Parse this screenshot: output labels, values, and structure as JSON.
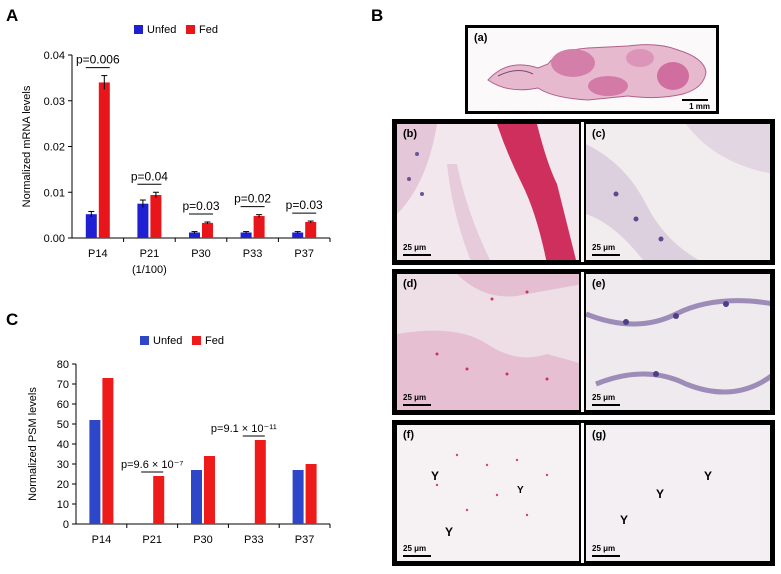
{
  "panel_labels": {
    "A": "A",
    "B": "B",
    "C": "C"
  },
  "chart_data": [
    {
      "type": "bar",
      "panel": "A",
      "categories": [
        "P14",
        "P21",
        "P30",
        "P33",
        "P37"
      ],
      "category_sublabels": [
        "",
        "(1/100)",
        "",
        "",
        ""
      ],
      "series": [
        {
          "name": "Unfed",
          "color": "#1f1fd4",
          "values": [
            0.0052,
            0.0075,
            0.0012,
            0.0012,
            0.0012
          ],
          "errors": [
            0.0006,
            0.0008,
            0.0002,
            0.0002,
            0.0002
          ]
        },
        {
          "name": "Fed",
          "color": "#e8161b",
          "values": [
            0.034,
            0.0094,
            0.0033,
            0.0048,
            0.0035
          ],
          "errors": [
            0.0015,
            0.0006,
            0.0002,
            0.0003,
            0.0002
          ]
        }
      ],
      "annotations": [
        "p=0.006",
        "p=0.04",
        "p=0.03",
        "p=0.02",
        "p=0.03"
      ],
      "ylabel": "Normalized mRNA levels",
      "ylim": [
        0,
        0.04
      ],
      "yticks": [
        "0.00",
        "0.01",
        "0.02",
        "0.03",
        "0.04"
      ],
      "legend": "top"
    },
    {
      "type": "bar",
      "panel": "C",
      "categories": [
        "P14",
        "P21",
        "P30",
        "P33",
        "P37"
      ],
      "series": [
        {
          "name": "Unfed",
          "color": "#2e47c8",
          "values": [
            52,
            0,
            27,
            0,
            27
          ]
        },
        {
          "name": "Fed",
          "color": "#ee1b1b",
          "values": [
            73,
            24,
            34,
            42,
            30
          ]
        }
      ],
      "annotations": [
        "p=9.6 × 10⁻⁷",
        "p=9.1 × 10⁻¹¹"
      ],
      "ylabel": "Normalized PSM levels",
      "ylim": [
        0,
        80
      ],
      "yticks": [
        "0",
        "10",
        "20",
        "30",
        "40",
        "50",
        "60",
        "70",
        "80"
      ],
      "legend": "top"
    }
  ],
  "micrographs": {
    "a": {
      "label": "(a)",
      "scale": "1 mm"
    },
    "b": {
      "label": "(b)",
      "scale": "25 μm"
    },
    "c": {
      "label": "(c)",
      "scale": "25 μm"
    },
    "d": {
      "label": "(d)",
      "scale": "25 μm"
    },
    "e": {
      "label": "(e)",
      "scale": "25 μm"
    },
    "f": {
      "label": "(f)",
      "scale": "25 μm",
      "marks": "Y"
    },
    "g": {
      "label": "(g)",
      "scale": "25 μm",
      "marks": "Y"
    }
  },
  "colors": {
    "stain_red": "#cc1c4a",
    "tissue_pink": "#e7c3d6",
    "nuclei": "#5a4a8c",
    "background": "#f3eeef"
  }
}
